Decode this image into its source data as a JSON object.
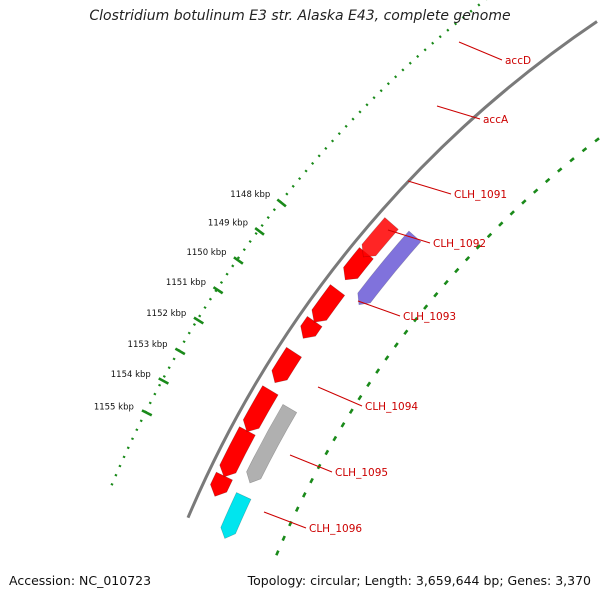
{
  "title": "Clostridium botulinum E3 str. Alaska E43, complete genome",
  "footer": {
    "accession": "Accession: NC_010723",
    "summary": "Topology: circular; Length: 3,659,644 bp; Genes: 3,370"
  },
  "colors": {
    "backbone": "#7a7a7a",
    "forward_gene": "#ff0000",
    "reverse_gene": "#ff0000",
    "pseudo_gene": "#b0b0b0",
    "blue_gene": "#6a5ad6",
    "cyan_gene": "#00e5ee",
    "tick": "#1a8a1a",
    "gene_label": "#cc0000"
  },
  "ruler": {
    "unit": "kbp",
    "ticks": [
      {
        "label": "1148 kbp"
      },
      {
        "label": "1149 kbp"
      },
      {
        "label": "1150 kbp"
      },
      {
        "label": "1151 kbp"
      },
      {
        "label": "1152 kbp"
      },
      {
        "label": "1153 kbp"
      },
      {
        "label": "1154 kbp"
      },
      {
        "label": "1155 kbp"
      }
    ]
  },
  "gene_labels": [
    "accD",
    "accA",
    "CLH_1091",
    "CLH_1092",
    "CLH_1093",
    "CLH_1094",
    "CLH_1095",
    "CLH_1096"
  ]
}
